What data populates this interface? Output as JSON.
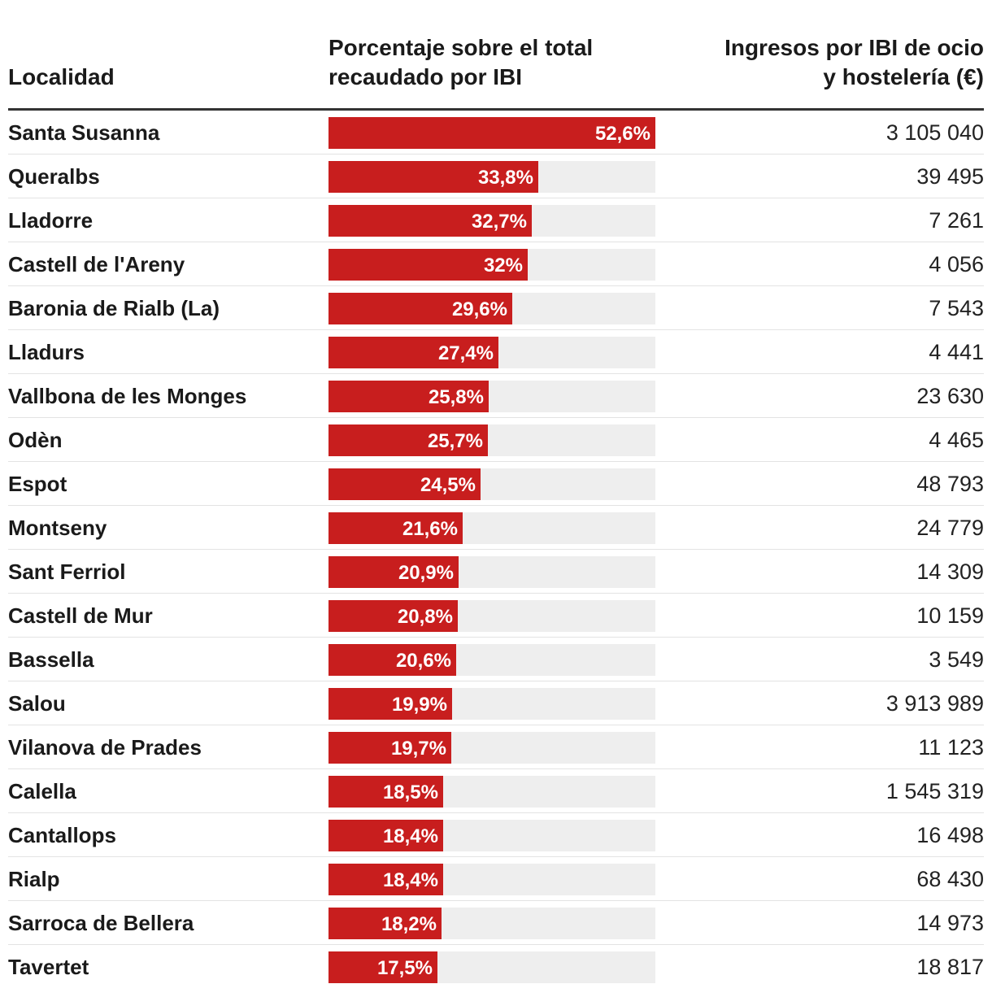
{
  "chart_data": {
    "type": "table",
    "columns": [
      "Localidad",
      "Porcentaje sobre el total recaudado por IBI",
      "Ingresos por IBI de ocio y hostelería (€)"
    ],
    "header": {
      "localidad": "Localidad",
      "porcentaje_line1": "Porcentaje sobre el total",
      "porcentaje_line2": "recaudado por IBI",
      "ingresos_line1": "Ingresos por IBI de ocio",
      "ingresos_line2": "y hostelería (€)"
    },
    "bar_max": 52.6,
    "colors": {
      "bar": "#c81e1e",
      "track": "#eeeeee"
    },
    "rows": [
      {
        "localidad": "Santa Susanna",
        "pct": 52.6,
        "pct_label": "52,6%",
        "ingresos": "3 105 040"
      },
      {
        "localidad": "Queralbs",
        "pct": 33.8,
        "pct_label": "33,8%",
        "ingresos": "39 495"
      },
      {
        "localidad": "Lladorre",
        "pct": 32.7,
        "pct_label": "32,7%",
        "ingresos": "7 261"
      },
      {
        "localidad": "Castell de l'Areny",
        "pct": 32,
        "pct_label": "32%",
        "ingresos": "4 056"
      },
      {
        "localidad": "Baronia de Rialb (La)",
        "pct": 29.6,
        "pct_label": "29,6%",
        "ingresos": "7 543"
      },
      {
        "localidad": "Lladurs",
        "pct": 27.4,
        "pct_label": "27,4%",
        "ingresos": "4 441"
      },
      {
        "localidad": "Vallbona de les Monges",
        "pct": 25.8,
        "pct_label": "25,8%",
        "ingresos": "23 630"
      },
      {
        "localidad": "Odèn",
        "pct": 25.7,
        "pct_label": "25,7%",
        "ingresos": "4 465"
      },
      {
        "localidad": "Espot",
        "pct": 24.5,
        "pct_label": "24,5%",
        "ingresos": "48 793"
      },
      {
        "localidad": "Montseny",
        "pct": 21.6,
        "pct_label": "21,6%",
        "ingresos": "24 779"
      },
      {
        "localidad": "Sant Ferriol",
        "pct": 20.9,
        "pct_label": "20,9%",
        "ingresos": "14 309"
      },
      {
        "localidad": "Castell de Mur",
        "pct": 20.8,
        "pct_label": "20,8%",
        "ingresos": "10 159"
      },
      {
        "localidad": "Bassella",
        "pct": 20.6,
        "pct_label": "20,6%",
        "ingresos": "3 549"
      },
      {
        "localidad": "Salou",
        "pct": 19.9,
        "pct_label": "19,9%",
        "ingresos": "3 913 989"
      },
      {
        "localidad": "Vilanova de Prades",
        "pct": 19.7,
        "pct_label": "19,7%",
        "ingresos": "11 123"
      },
      {
        "localidad": "Calella",
        "pct": 18.5,
        "pct_label": "18,5%",
        "ingresos": "1 545 319"
      },
      {
        "localidad": "Cantallops",
        "pct": 18.4,
        "pct_label": "18,4%",
        "ingresos": "16 498"
      },
      {
        "localidad": "Rialp",
        "pct": 18.4,
        "pct_label": "18,4%",
        "ingresos": "68 430"
      },
      {
        "localidad": "Sarroca de Bellera",
        "pct": 18.2,
        "pct_label": "18,2%",
        "ingresos": "14 973"
      },
      {
        "localidad": "Tavertet",
        "pct": 17.5,
        "pct_label": "17,5%",
        "ingresos": "18 817"
      }
    ]
  }
}
